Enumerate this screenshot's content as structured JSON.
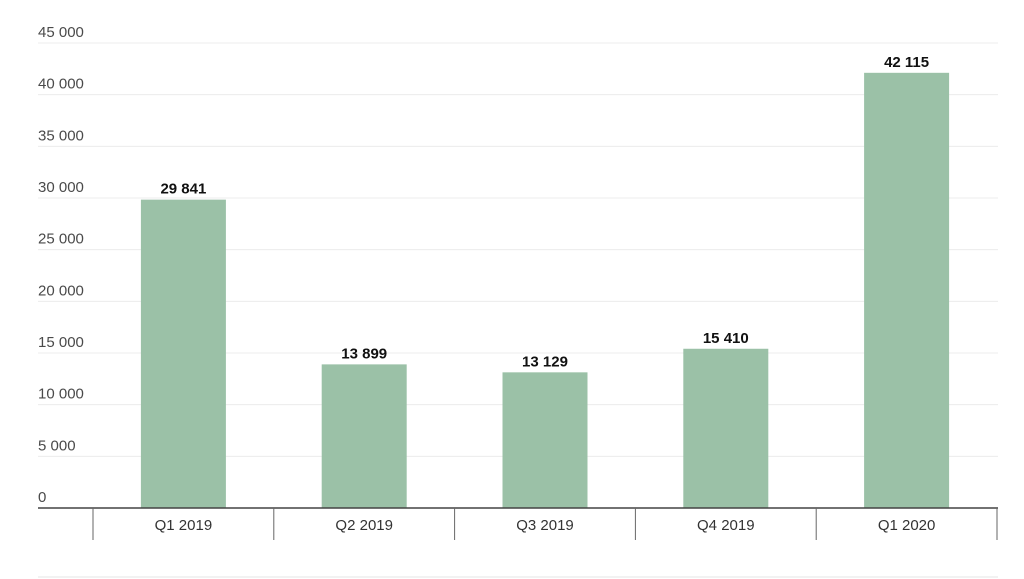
{
  "chart_data": {
    "type": "bar",
    "categories": [
      "Q1 2019",
      "Q2 2019",
      "Q3 2019",
      "Q4 2019",
      "Q1 2020"
    ],
    "values": [
      29841,
      13899,
      13129,
      15410,
      42115
    ],
    "data_labels": [
      "29 841",
      "13 899",
      "13 129",
      "15 410",
      "42 115"
    ],
    "ylim": [
      0,
      45000
    ],
    "yticks": [
      0,
      5000,
      10000,
      15000,
      20000,
      25000,
      30000,
      35000,
      40000,
      45000
    ],
    "ytick_labels": [
      "0",
      "5 000",
      "10 000",
      "15 000",
      "20 000",
      "25 000",
      "30 000",
      "35 000",
      "40 000",
      "45 000"
    ],
    "grid": true,
    "bar_color": "#9bc1a7",
    "title": "",
    "xlabel": "",
    "ylabel": ""
  }
}
